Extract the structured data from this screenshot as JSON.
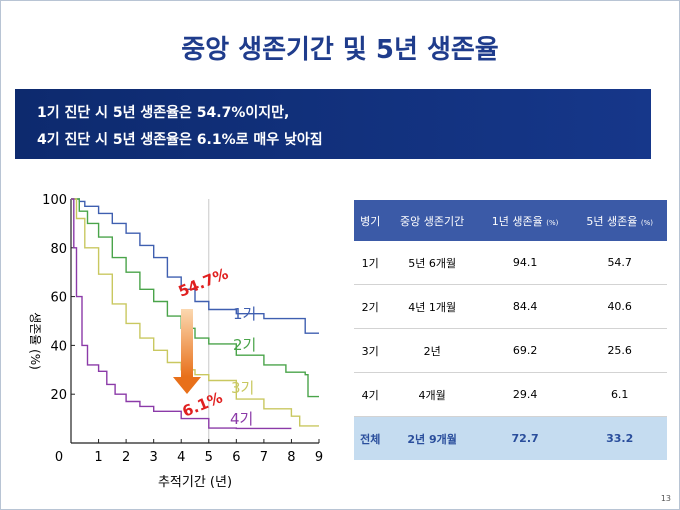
{
  "title": "중앙 생존기간 및 5년 생존율",
  "banner": {
    "line1": "1기 진단 시 5년 생존율은 54.7%이지만,",
    "line2": "4기 진단 시 5년 생존율은 6.1%로 매우 낮아짐"
  },
  "table": {
    "headers": [
      "병기",
      "중앙 생존기간",
      "1년 생존율",
      "5년 생존율"
    ],
    "header_unit": "(%)",
    "rows": [
      {
        "stage": "1기",
        "median": "5년 6개월",
        "y1": "94.1",
        "y5": "54.7"
      },
      {
        "stage": "2기",
        "median": "4년 1개월",
        "y1": "84.4",
        "y5": "40.6"
      },
      {
        "stage": "3기",
        "median": "2년",
        "y1": "69.2",
        "y5": "25.6"
      },
      {
        "stage": "4기",
        "median": "4개월",
        "y1": "29.4",
        "y5": "6.1"
      }
    ],
    "total": {
      "stage": "전체",
      "median": "2년 9개월",
      "y1": "72.7",
      "y5": "33.2"
    }
  },
  "page_number": "13",
  "chart_data": {
    "type": "line",
    "xlabel": "추적기간 (년)",
    "ylabel": "생존율 (%)",
    "xlim": [
      0,
      9
    ],
    "ylim": [
      0,
      100
    ],
    "x_ticks": [
      "0",
      "1",
      "2",
      "3",
      "4",
      "5",
      "6",
      "7",
      "8",
      "9"
    ],
    "y_ticks": [
      "20",
      "40",
      "60",
      "80",
      "100"
    ],
    "reference_line_x": 5,
    "series": [
      {
        "name": "1기",
        "color": "#3f5fb0",
        "points": [
          [
            0,
            100
          ],
          [
            0.3,
            99
          ],
          [
            0.5,
            97
          ],
          [
            1,
            94.1
          ],
          [
            1.5,
            90
          ],
          [
            2,
            86
          ],
          [
            2.5,
            81
          ],
          [
            3,
            76
          ],
          [
            3.5,
            68
          ],
          [
            4,
            63
          ],
          [
            4.5,
            58
          ],
          [
            5,
            54.7
          ],
          [
            6,
            53
          ],
          [
            7,
            51
          ],
          [
            8,
            51
          ],
          [
            8.5,
            45
          ],
          [
            9,
            45
          ]
        ]
      },
      {
        "name": "2기",
        "color": "#4aa44a",
        "points": [
          [
            0,
            100
          ],
          [
            0.3,
            95
          ],
          [
            0.6,
            90
          ],
          [
            1,
            84.4
          ],
          [
            1.5,
            76
          ],
          [
            2,
            70
          ],
          [
            2.5,
            63
          ],
          [
            3,
            58
          ],
          [
            3.5,
            52
          ],
          [
            4,
            47
          ],
          [
            4.5,
            43
          ],
          [
            5,
            40.6
          ],
          [
            6,
            36
          ],
          [
            7,
            32
          ],
          [
            7.8,
            29
          ],
          [
            8.5,
            28
          ],
          [
            8.6,
            19
          ],
          [
            9,
            19
          ]
        ]
      },
      {
        "name": "3기",
        "color": "#c9c860",
        "points": [
          [
            0,
            100
          ],
          [
            0.2,
            92
          ],
          [
            0.5,
            80
          ],
          [
            1,
            69.2
          ],
          [
            1.5,
            57
          ],
          [
            2,
            49
          ],
          [
            2.5,
            43
          ],
          [
            3,
            38
          ],
          [
            3.5,
            33
          ],
          [
            4,
            30
          ],
          [
            4.5,
            28
          ],
          [
            5,
            25.6
          ],
          [
            6,
            18
          ],
          [
            7,
            14
          ],
          [
            8,
            11
          ],
          [
            8.3,
            7
          ],
          [
            9,
            7
          ]
        ]
      },
      {
        "name": "4기",
        "color": "#8b3aa8",
        "points": [
          [
            0,
            100
          ],
          [
            0.1,
            80
          ],
          [
            0.2,
            60
          ],
          [
            0.4,
            40
          ],
          [
            0.6,
            32
          ],
          [
            1,
            29.4
          ],
          [
            1.3,
            24
          ],
          [
            1.6,
            20
          ],
          [
            2,
            17
          ],
          [
            2.5,
            15
          ],
          [
            3,
            13
          ],
          [
            4,
            10
          ],
          [
            5,
            6.1
          ],
          [
            6,
            6
          ],
          [
            7,
            6
          ],
          [
            8,
            6
          ]
        ]
      }
    ],
    "annotations": [
      "54.7%",
      "6.1%"
    ],
    "legend": "inline-right"
  }
}
